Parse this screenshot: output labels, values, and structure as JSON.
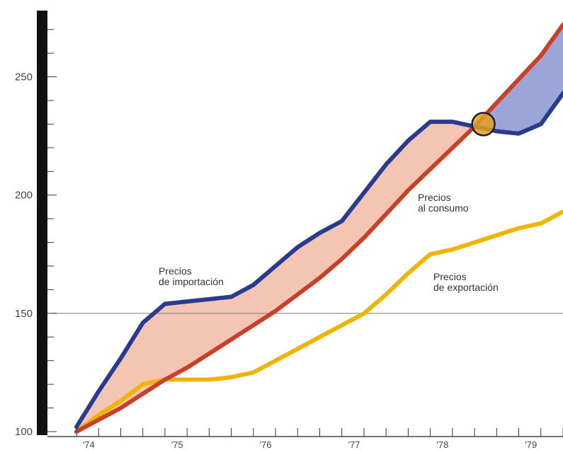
{
  "chart_data": {
    "type": "line",
    "title": "",
    "xlabel": "",
    "ylabel": "",
    "ylim": [
      100,
      275
    ],
    "xlim": [
      1973.75,
      1979.25
    ],
    "y_ticks": [
      "100",
      "150",
      "200",
      "250"
    ],
    "x_ticks": [
      {
        "label": "'74",
        "value": 1974.0
      },
      {
        "label": "'75",
        "value": 1975.0
      },
      {
        "label": "'76",
        "value": 1976.0
      },
      {
        "label": "'77",
        "value": 1977.0
      },
      {
        "label": "'78",
        "value": 1978.0
      },
      {
        "label": "'79",
        "value": 1979.0
      }
    ],
    "reference_line": 150,
    "grid": false,
    "series": [
      {
        "name": "Precios de importación",
        "color": "#2a3a8c",
        "x": [
          1973.75,
          1974.0,
          1974.25,
          1974.5,
          1974.75,
          1975.0,
          1975.25,
          1975.5,
          1975.75,
          1976.0,
          1976.25,
          1976.5,
          1976.75,
          1977.0,
          1977.25,
          1977.5,
          1977.75,
          1978.0,
          1978.25,
          1978.5,
          1978.75,
          1979.0,
          1979.25
        ],
        "values": [
          102,
          117,
          131,
          146,
          154,
          155,
          156,
          157,
          162,
          170,
          178,
          184,
          189,
          201,
          213,
          223,
          231,
          231,
          229,
          227,
          226,
          230,
          243
        ]
      },
      {
        "name": "Precios al consumo",
        "color": "#c8402a",
        "x": [
          1973.75,
          1974.0,
          1974.25,
          1974.5,
          1974.75,
          1975.0,
          1975.25,
          1975.5,
          1975.75,
          1976.0,
          1976.25,
          1976.5,
          1976.75,
          1977.0,
          1977.25,
          1977.5,
          1977.75,
          1978.0,
          1978.25,
          1978.5,
          1978.75,
          1979.0,
          1979.25
        ],
        "values": [
          100,
          105,
          110,
          116,
          122,
          127,
          133,
          139,
          145,
          151,
          158,
          165,
          173,
          182,
          192,
          202,
          211,
          220,
          229,
          239,
          249,
          259,
          272
        ]
      },
      {
        "name": "Precios de exportación",
        "color": "#f0b400",
        "x": [
          1973.75,
          1974.0,
          1974.25,
          1974.5,
          1974.75,
          1975.0,
          1975.25,
          1975.5,
          1975.75,
          1976.0,
          1976.25,
          1976.5,
          1976.75,
          1977.0,
          1977.25,
          1977.5,
          1977.75,
          1978.0,
          1978.25,
          1978.5,
          1978.75,
          1979.0,
          1979.25
        ],
        "values": [
          100,
          107,
          113,
          120,
          122,
          122,
          122,
          123,
          125,
          130,
          135,
          140,
          145,
          150,
          158,
          167,
          175,
          177,
          180,
          183,
          186,
          188,
          193
        ]
      }
    ],
    "annotations": [
      {
        "lines": [
          "Precios",
          "de importación"
        ],
        "series": 0
      },
      {
        "lines": [
          "Precios",
          "al consumo"
        ],
        "series": 1
      },
      {
        "lines": [
          "Precios",
          "de exportación"
        ],
        "series": 2
      }
    ],
    "fills": [
      {
        "between": [
          0,
          1
        ],
        "where": "series0_above",
        "color": "#f5c5b3"
      },
      {
        "between": [
          0,
          1
        ],
        "where": "series1_above",
        "color": "#9aa6d8"
      }
    ],
    "crossover_marker": {
      "x": 1978.35,
      "y": 230,
      "color": "#e0a020"
    }
  }
}
